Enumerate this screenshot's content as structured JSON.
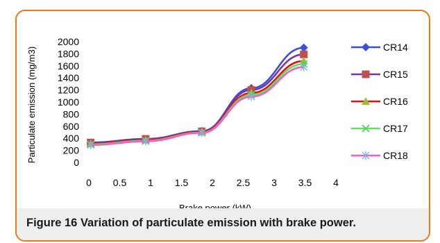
{
  "caption": "Figure 16 Variation of particulate emission with brake power.",
  "chart_data": {
    "type": "line",
    "xlabel": "Brake power (kW)",
    "ylabel": "Particulate emission (mg/m3)",
    "xlim": [
      0,
      4
    ],
    "ylim": [
      0,
      2000
    ],
    "xticks": [
      "0",
      "0.5",
      "1",
      "1.5",
      "2",
      "2.5",
      "3",
      "3.5",
      "4"
    ],
    "yticks": [
      "0",
      "200",
      "400",
      "600",
      "800",
      "1000",
      "1200",
      "1400",
      "1600",
      "1800",
      "2000"
    ],
    "grid": false,
    "legend_position": "right",
    "x": [
      0.03,
      0.92,
      1.83,
      2.63,
      3.48
    ],
    "series": [
      {
        "name": "CR14",
        "color": "#3a50d8",
        "marker": "diamond",
        "values": [
          325,
          385,
          520,
          1230,
          1900
        ]
      },
      {
        "name": "CR15",
        "color": "#c0504d",
        "marker": "square",
        "values": [
          330,
          390,
          515,
          1200,
          1790
        ]
      },
      {
        "name": "CR16",
        "color": "#9bbb3b",
        "marker": "triangle",
        "values": [
          310,
          370,
          505,
          1150,
          1680
        ]
      },
      {
        "name": "CR17",
        "color": "#4cd060",
        "marker": "x",
        "values": [
          300,
          360,
          495,
          1120,
          1630
        ]
      },
      {
        "name": "CR18",
        "color": "#79b8d8",
        "marker": "star",
        "values": [
          290,
          350,
          490,
          1090,
          1580
        ]
      }
    ],
    "line_colors": [
      "#3a50d8",
      "#7a35a0",
      "#e01010",
      "#60e060",
      "#f060c8"
    ]
  }
}
